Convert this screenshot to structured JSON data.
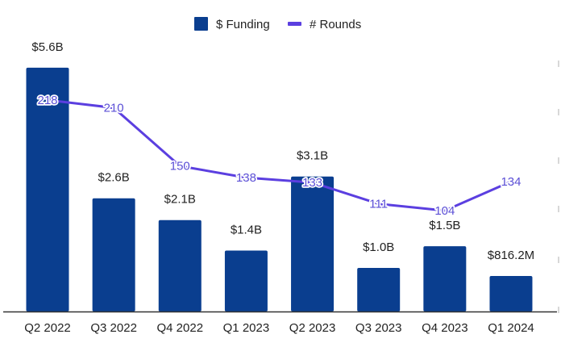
{
  "chart_data": {
    "type": "bar",
    "title": "",
    "xlabel": "",
    "ylabel": "",
    "categories": [
      "Q2 2022",
      "Q3 2022",
      "Q4 2022",
      "Q1 2023",
      "Q2 2023",
      "Q3 2023",
      "Q4 2023",
      "Q1 2024"
    ],
    "series": [
      {
        "name": "$ Funding",
        "type": "bar",
        "axis": "left",
        "unit": "billion USD",
        "values": [
          5.6,
          2.6,
          2.1,
          1.4,
          3.1,
          1.0,
          1.5,
          0.8162
        ],
        "labels": [
          "$5.6B",
          "$2.6B",
          "$2.1B",
          "$1.4B",
          "$3.1B",
          "$1.0B",
          "$1.5B",
          "$816.2M"
        ],
        "color": "#0a3e8f"
      },
      {
        "name": "# Rounds",
        "type": "line",
        "axis": "right",
        "values": [
          218,
          210,
          150,
          138,
          133,
          111,
          104,
          134
        ],
        "labels": [
          "218",
          "210",
          "150",
          "138",
          "133",
          "111",
          "104",
          "134"
        ],
        "color": "#5b3fe0"
      }
    ],
    "ylim": [
      0,
      6.95
    ],
    "y2lim": [
      0,
      312
    ],
    "grid": false,
    "legend": {
      "placement": "top-center",
      "entries": [
        {
          "label": "$ Funding",
          "marker": "square",
          "color": "#0a3e8f"
        },
        {
          "label": "# Rounds",
          "marker": "line",
          "color": "#5b3fe0"
        }
      ]
    },
    "colors": {
      "axis_line": "#333333",
      "text": "#222222",
      "line_label_text": "#5b4fd6"
    }
  }
}
